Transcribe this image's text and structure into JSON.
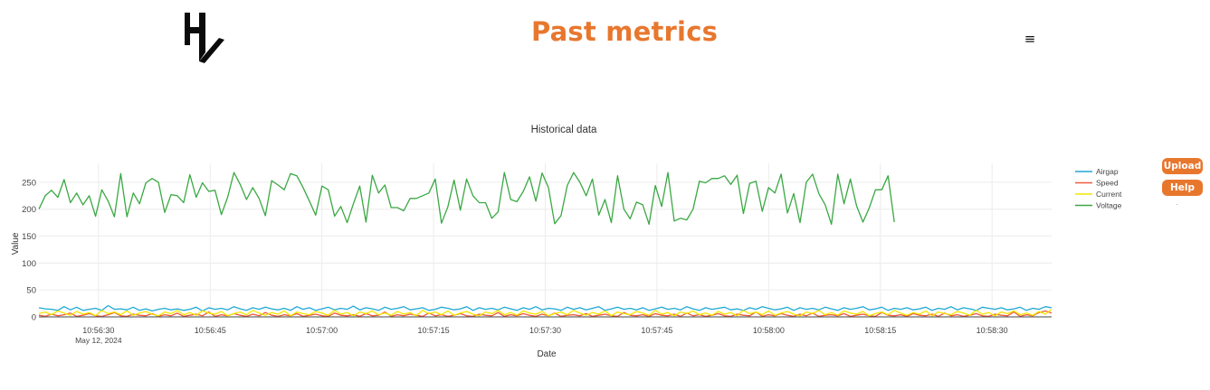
{
  "header": {
    "title": "Past metrics",
    "logo_icon": "logo-icon",
    "menu_icon": "≡"
  },
  "side_buttons": {
    "upload_label": "Upload",
    "help_label": "Help",
    "dot": "·"
  },
  "colors": {
    "brand": "#e8772e",
    "airgap": "#1fa9d3",
    "speed": "#f05a3c",
    "current": "#f2e600",
    "voltage": "#3aa843"
  },
  "chart_data": {
    "type": "line",
    "title": "Historical data",
    "xlabel": "Date",
    "ylabel": "Value",
    "ylim": [
      0,
      285
    ],
    "yticks": [
      0,
      50,
      100,
      150,
      200,
      250
    ],
    "xrange_seconds": [
      -8,
      83
    ],
    "xticks": [
      {
        "label": "10:56:30",
        "sub": "May 12, 2024",
        "t": 0
      },
      {
        "label": "10:56:45",
        "t": 15
      },
      {
        "label": "10:57:00",
        "t": 30
      },
      {
        "label": "10:57:15",
        "t": 45
      },
      {
        "label": "10:57:30",
        "t": 60
      },
      {
        "label": "10:57:45",
        "t": 75
      },
      {
        "label": "10:58:00",
        "t": 90
      },
      {
        "label": "10:58:15",
        "t": 105
      },
      {
        "label": "10:58:30",
        "t": 120
      }
    ],
    "x_start": -8,
    "x_step": 0.67,
    "grid": true,
    "legend": "top-right",
    "series": [
      {
        "name": "Airgap",
        "color": "#1fa9d3",
        "values": [
          17,
          15,
          14,
          12,
          19,
          13,
          18,
          12,
          14,
          16,
          12,
          21,
          14,
          15,
          13,
          18,
          12,
          15,
          11,
          14,
          16,
          13,
          15,
          12,
          14,
          18,
          11,
          17,
          14,
          16,
          13,
          19,
          15,
          12,
          17,
          14,
          18,
          15,
          13,
          16,
          12,
          19,
          14,
          17,
          12,
          15,
          18,
          13,
          16,
          14,
          20,
          13,
          17,
          15,
          12,
          18,
          14,
          16,
          19,
          13,
          15,
          17,
          12,
          14,
          18,
          16,
          13,
          15,
          19,
          12,
          17,
          14,
          16,
          13,
          18,
          15,
          12,
          17,
          14,
          19,
          13,
          16,
          15,
          12,
          18,
          14,
          17,
          13,
          16,
          19,
          12,
          15,
          18,
          14,
          16,
          13,
          17,
          12,
          15,
          18,
          14,
          16,
          13,
          19,
          15,
          12,
          17,
          14,
          16,
          18,
          13,
          15,
          12,
          17,
          14,
          19,
          16,
          13,
          15,
          18,
          12,
          17,
          14,
          16,
          13,
          18,
          15,
          12,
          17,
          14,
          16,
          19,
          13,
          15,
          18,
          12,
          16,
          14,
          17,
          13,
          15,
          18,
          12,
          16,
          14,
          19,
          13,
          17,
          15,
          12,
          18,
          16,
          14,
          17,
          13,
          15,
          18,
          12,
          16,
          14,
          19,
          17
        ]
      },
      {
        "name": "Speed",
        "color": "#f05a3c",
        "values": [
          3,
          1,
          5,
          2,
          4,
          7,
          1,
          3,
          6,
          2,
          1,
          4,
          8,
          2,
          1,
          5,
          3,
          2,
          6,
          1,
          4,
          2,
          7,
          1,
          3,
          5,
          2,
          9,
          1,
          4,
          2,
          6,
          3,
          1,
          5,
          2,
          8,
          3,
          1,
          4,
          2,
          6,
          1,
          3,
          5,
          2,
          1,
          7,
          3,
          2,
          4,
          1,
          6,
          2,
          3,
          9,
          1,
          4,
          2,
          5,
          3,
          1,
          7,
          2,
          4,
          1,
          3,
          6,
          2,
          1,
          5,
          3,
          2,
          8,
          1,
          4,
          2,
          6,
          3,
          1,
          5,
          2,
          7,
          1,
          3,
          4,
          2,
          6,
          1,
          3,
          5,
          2,
          1,
          8,
          3,
          2,
          4,
          1,
          6,
          3,
          2,
          5,
          1,
          7,
          2,
          4,
          1,
          3,
          6,
          2,
          1,
          5,
          3,
          2,
          9,
          1,
          4,
          2,
          6,
          3,
          1,
          5,
          2,
          7,
          1,
          3,
          4,
          2,
          6,
          1,
          3,
          5,
          2,
          1,
          8,
          3,
          2,
          4,
          1,
          6,
          3,
          2,
          5,
          1,
          7,
          2,
          4,
          1,
          3,
          6,
          2,
          1,
          5,
          3,
          2,
          9,
          1,
          4,
          2,
          8,
          11,
          7
        ]
      },
      {
        "name": "Current",
        "color": "#f2e600",
        "values": [
          6,
          9,
          4,
          11,
          7,
          3,
          10,
          5,
          8,
          2,
          12,
          6,
          9,
          4,
          11,
          3,
          7,
          10,
          5,
          2,
          9,
          6,
          12,
          4,
          8,
          3,
          11,
          7,
          5,
          10,
          2,
          6,
          9,
          4,
          12,
          7,
          3,
          8,
          5,
          11,
          2,
          9,
          6,
          4,
          10,
          7,
          3,
          12,
          5,
          8,
          2,
          9,
          6,
          11,
          4,
          7,
          3,
          10,
          5,
          8,
          2,
          12,
          6,
          9,
          4,
          11,
          3,
          7,
          10,
          5,
          2,
          9,
          6,
          12,
          4,
          8,
          3,
          11,
          7,
          5,
          10,
          2,
          6,
          9,
          4,
          12,
          7,
          3,
          8,
          5,
          11,
          2,
          9,
          6,
          4,
          10,
          7,
          3,
          12,
          5,
          8,
          2,
          9,
          6,
          11,
          4,
          7,
          3,
          10,
          5,
          8,
          2,
          12,
          6,
          9,
          4,
          11,
          3,
          7,
          10,
          5,
          2,
          9,
          6,
          12,
          4,
          8,
          3,
          11,
          7,
          5,
          10,
          2,
          6,
          9,
          4,
          12,
          7,
          3,
          8,
          5,
          11,
          2,
          9,
          6,
          4,
          10,
          7,
          3,
          12,
          5,
          8,
          2,
          9,
          6,
          11,
          4,
          7,
          3,
          10,
          5,
          14
        ]
      },
      {
        "name": "Voltage",
        "color": "#3aa843",
        "values": [
          200,
          225,
          235,
          222,
          255,
          212,
          230,
          208,
          225,
          187,
          236,
          215,
          186,
          266,
          186,
          230,
          210,
          249,
          257,
          250,
          194,
          227,
          225,
          212,
          264,
          222,
          249,
          233,
          235,
          190,
          222,
          268,
          246,
          218,
          240,
          220,
          188,
          253,
          245,
          236,
          266,
          262,
          240,
          215,
          189,
          243,
          236,
          187,
          205,
          175,
          210,
          243,
          176,
          263,
          230,
          245,
          203,
          203,
          197,
          220,
          220,
          225,
          230,
          256,
          174,
          204,
          254,
          198,
          256,
          225,
          212,
          212,
          183,
          195,
          268,
          218,
          214,
          233,
          260,
          215,
          267,
          240,
          173,
          188,
          244,
          268,
          250,
          225,
          256,
          189,
          218,
          175,
          262,
          200,
          182,
          213,
          208,
          172,
          244,
          205,
          268,
          178,
          183,
          180,
          200,
          252,
          249,
          257,
          257,
          262,
          246,
          263,
          192,
          248,
          252,
          196,
          240,
          230,
          265,
          193,
          229,
          175,
          250,
          265,
          229,
          208,
          172,
          265,
          210,
          256,
          206,
          176,
          202,
          236,
          236,
          262,
          176
        ]
      }
    ]
  }
}
